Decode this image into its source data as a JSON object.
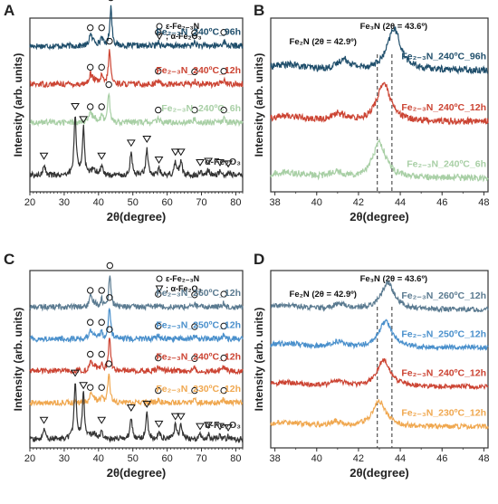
{
  "figure": {
    "panel_letters": [
      "A",
      "B",
      "C",
      "D"
    ]
  },
  "colors": {
    "axis": "#333333",
    "peak_marker": "#111111",
    "dashed_line": "#444444"
  },
  "chart_data": [
    {
      "type": "line",
      "panel": "A",
      "xlabel": "2θ(degree)",
      "ylabel": "Intensity (arb. units)",
      "xlim": [
        20,
        82
      ],
      "xticks": [
        20,
        30,
        40,
        50,
        60,
        70,
        80
      ],
      "legend": [
        {
          "marker": "circle",
          "label": "ε-Fe₂₋₃N"
        },
        {
          "marker": "triangle",
          "label": "; α-Fe₂O₃"
        }
      ],
      "series": [
        {
          "name": "Fe₂₋₃N_240ºC_96h",
          "color": "#1f4e6b",
          "peaks": [
            [
              37.6,
              0.7
            ],
            [
              40.9,
              0.7
            ],
            [
              43.6,
              3.0
            ],
            [
              57.4,
              0.35
            ],
            [
              68.0,
              0.3
            ],
            [
              76.5,
              0.35
            ]
          ],
          "markers": [
            [
              37.6,
              "circle"
            ],
            [
              40.9,
              "circle"
            ],
            [
              43.6,
              "circle"
            ],
            [
              57.4,
              "circle"
            ],
            [
              68.0,
              "circle"
            ],
            [
              76.5,
              "circle"
            ]
          ]
        },
        {
          "name": "Fe₂₋₃N_240ºC_12h",
          "color": "#cc4433",
          "peaks": [
            [
              37.6,
              0.6
            ],
            [
              40.9,
              0.6
            ],
            [
              43.2,
              2.6
            ],
            [
              57.4,
              0.3
            ],
            [
              68.0,
              0.25
            ],
            [
              76.5,
              0.3
            ]
          ],
          "markers": [
            [
              37.6,
              "circle"
            ],
            [
              40.9,
              "circle"
            ],
            [
              43.2,
              "circle"
            ],
            [
              57.4,
              "circle"
            ],
            [
              68.0,
              "circle"
            ],
            [
              76.5,
              "circle"
            ]
          ]
        },
        {
          "name": "Fe₂₋₃N_240ºC_6h",
          "color": "#a8cfa5",
          "peaks": [
            [
              37.6,
              0.5
            ],
            [
              40.9,
              0.5
            ],
            [
              43.0,
              2.2
            ],
            [
              57.4,
              0.25
            ],
            [
              68.0,
              0.25
            ],
            [
              76.5,
              0.25
            ]
          ],
          "markers": [
            [
              37.6,
              "circle"
            ],
            [
              40.9,
              "circle"
            ],
            [
              43.0,
              "circle"
            ],
            [
              57.4,
              "circle"
            ],
            [
              68.0,
              "circle"
            ],
            [
              76.5,
              "circle"
            ]
          ]
        },
        {
          "name": "α-Fe₂O₃",
          "color": "#333333",
          "peaks": [
            [
              24.1,
              0.8
            ],
            [
              33.2,
              4.6
            ],
            [
              35.6,
              3.6
            ],
            [
              40.9,
              0.8
            ],
            [
              49.5,
              1.8
            ],
            [
              54.1,
              2.1
            ],
            [
              57.6,
              0.5
            ],
            [
              62.4,
              1.1
            ],
            [
              64.0,
              1.1
            ],
            [
              69.6,
              0.3
            ],
            [
              72.0,
              0.4
            ],
            [
              75.4,
              0.3
            ],
            [
              77.8,
              0.2
            ]
          ],
          "markers": [
            [
              24.1,
              "triangle"
            ],
            [
              33.2,
              "triangle"
            ],
            [
              35.6,
              "triangle"
            ],
            [
              40.9,
              "triangle"
            ],
            [
              49.5,
              "triangle"
            ],
            [
              54.1,
              "triangle"
            ],
            [
              57.6,
              "triangle"
            ],
            [
              62.4,
              "triangle"
            ],
            [
              64.0,
              "triangle"
            ],
            [
              69.6,
              "triangle"
            ],
            [
              72.0,
              "triangle"
            ],
            [
              75.4,
              "triangle"
            ],
            [
              77.8,
              "triangle"
            ]
          ]
        }
      ]
    },
    {
      "type": "line",
      "panel": "B",
      "xlabel": "2θ(degree)",
      "ylabel": "Intensity (arb. units)",
      "xlim": [
        37.8,
        48.2
      ],
      "xticks": [
        38,
        40,
        42,
        44,
        46,
        48
      ],
      "reference_lines": [
        {
          "x": 42.9,
          "label": "Fe₂N (2θ = 42.9º)"
        },
        {
          "x": 43.6,
          "label": "Fe₃N (2θ = 43.6º)"
        }
      ],
      "series": [
        {
          "name": "Fe₂₋₃N_240ºC_96h",
          "color": "#1f4e6b",
          "peaks": [
            [
              41.3,
              0.7
            ],
            [
              43.7,
              2.8
            ]
          ]
        },
        {
          "name": "Fe₂₋₃N_240ºC_12h",
          "color": "#cc4433",
          "peaks": [
            [
              41.0,
              0.5
            ],
            [
              43.2,
              2.6
            ]
          ]
        },
        {
          "name": "Fe₂₋₃N_240ºC_6h",
          "color": "#a8cfa5",
          "peaks": [
            [
              40.9,
              0.4
            ],
            [
              43.0,
              2.4
            ]
          ]
        }
      ]
    },
    {
      "type": "line",
      "panel": "C",
      "xlabel": "2θ(degree)",
      "ylabel": "Intensity (arb. units)",
      "xlim": [
        20,
        82
      ],
      "xticks": [
        20,
        30,
        40,
        50,
        60,
        70,
        80
      ],
      "legend": [
        {
          "marker": "circle",
          "label": "ε-Fe₂₋₃N"
        },
        {
          "marker": "triangle",
          "label": "; α-Fe₂O₃"
        }
      ],
      "series": [
        {
          "name": "Fe₂₋₃N_260ºC_12h",
          "color": "#5a7a90",
          "peaks": [
            [
              37.6,
              0.6
            ],
            [
              40.9,
              0.6
            ],
            [
              43.3,
              2.6
            ],
            [
              57.4,
              0.3
            ],
            [
              68.0,
              0.25
            ],
            [
              76.5,
              0.3
            ]
          ],
          "markers": [
            [
              37.6,
              "circle"
            ],
            [
              40.9,
              "circle"
            ],
            [
              43.3,
              "circle"
            ],
            [
              57.4,
              "circle"
            ],
            [
              68.0,
              "circle"
            ],
            [
              76.5,
              "circle"
            ]
          ]
        },
        {
          "name": "Fe₂₋₃N_250ºC_12h",
          "color": "#4a90cc",
          "peaks": [
            [
              37.6,
              0.6
            ],
            [
              40.9,
              0.6
            ],
            [
              43.2,
              2.6
            ],
            [
              57.4,
              0.3
            ],
            [
              68.0,
              0.25
            ],
            [
              76.5,
              0.3
            ]
          ],
          "markers": [
            [
              37.6,
              "circle"
            ],
            [
              40.9,
              "circle"
            ],
            [
              43.2,
              "circle"
            ],
            [
              57.4,
              "circle"
            ],
            [
              68.0,
              "circle"
            ],
            [
              76.5,
              "circle"
            ]
          ]
        },
        {
          "name": "Fe₂₋₃N_240ºC_12h",
          "color": "#cc4433",
          "peaks": [
            [
              37.6,
              0.6
            ],
            [
              40.9,
              0.6
            ],
            [
              43.2,
              2.6
            ],
            [
              57.4,
              0.3
            ],
            [
              68.0,
              0.25
            ],
            [
              76.5,
              0.3
            ]
          ],
          "markers": [
            [
              37.6,
              "circle"
            ],
            [
              40.9,
              "circle"
            ],
            [
              43.2,
              "circle"
            ],
            [
              57.4,
              "circle"
            ],
            [
              68.0,
              "circle"
            ],
            [
              76.5,
              "circle"
            ]
          ]
        },
        {
          "name": "Fe₂₋₃N_230ºC_12h",
          "color": "#f0a850",
          "peaks": [
            [
              37.6,
              0.5
            ],
            [
              40.9,
              0.5
            ],
            [
              43.0,
              2.4
            ],
            [
              57.4,
              0.25
            ],
            [
              68.0,
              0.25
            ],
            [
              76.5,
              0.25
            ]
          ],
          "markers": [
            [
              37.6,
              "circle"
            ],
            [
              40.9,
              "circle"
            ],
            [
              43.0,
              "circle"
            ],
            [
              57.4,
              "circle"
            ],
            [
              68.0,
              "circle"
            ],
            [
              76.5,
              "circle"
            ]
          ]
        },
        {
          "name": "α-Fe₂O₃",
          "color": "#333333",
          "peaks": [
            [
              24.1,
              0.8
            ],
            [
              33.2,
              4.6
            ],
            [
              35.6,
              3.6
            ],
            [
              40.9,
              0.8
            ],
            [
              49.5,
              1.8
            ],
            [
              54.1,
              2.1
            ],
            [
              57.6,
              0.5
            ],
            [
              62.4,
              1.1
            ],
            [
              64.0,
              1.1
            ],
            [
              69.6,
              0.3
            ],
            [
              72.0,
              0.4
            ],
            [
              75.4,
              0.3
            ],
            [
              77.8,
              0.2
            ]
          ],
          "markers": [
            [
              24.1,
              "triangle"
            ],
            [
              33.2,
              "triangle"
            ],
            [
              35.6,
              "triangle"
            ],
            [
              40.9,
              "triangle"
            ],
            [
              49.5,
              "triangle"
            ],
            [
              54.1,
              "triangle"
            ],
            [
              57.6,
              "triangle"
            ],
            [
              62.4,
              "triangle"
            ],
            [
              64.0,
              "triangle"
            ],
            [
              69.6,
              "triangle"
            ],
            [
              72.0,
              "triangle"
            ],
            [
              75.4,
              "triangle"
            ],
            [
              77.8,
              "triangle"
            ]
          ]
        }
      ]
    },
    {
      "type": "line",
      "panel": "D",
      "xlabel": "2θ(degree)",
      "ylabel": "Intensity (arb. units)",
      "xlim": [
        37.8,
        48.2
      ],
      "xticks": [
        38,
        40,
        42,
        44,
        46,
        48
      ],
      "reference_lines": [
        {
          "x": 42.9,
          "label": "Fe₂N (2θ = 42.9º)"
        },
        {
          "x": 43.6,
          "label": "Fe₃N (2θ = 43.6º)"
        }
      ],
      "series": [
        {
          "name": "Fe₂₋₃N_260ºC_12h",
          "color": "#5a7a90",
          "peaks": [
            [
              41.1,
              0.5
            ],
            [
              43.4,
              2.4
            ]
          ]
        },
        {
          "name": "Fe₂₋₃N_250ºC_12h",
          "color": "#4a90cc",
          "peaks": [
            [
              41.0,
              0.5
            ],
            [
              43.3,
              2.4
            ]
          ]
        },
        {
          "name": "Fe₂₋₃N_240ºC_12h",
          "color": "#cc4433",
          "peaks": [
            [
              41.0,
              0.5
            ],
            [
              43.2,
              2.4
            ]
          ]
        },
        {
          "name": "Fe₂₋₃N_230ºC_12h",
          "color": "#f0a850",
          "peaks": [
            [
              40.9,
              0.4
            ],
            [
              43.0,
              2.3
            ]
          ]
        }
      ]
    }
  ]
}
